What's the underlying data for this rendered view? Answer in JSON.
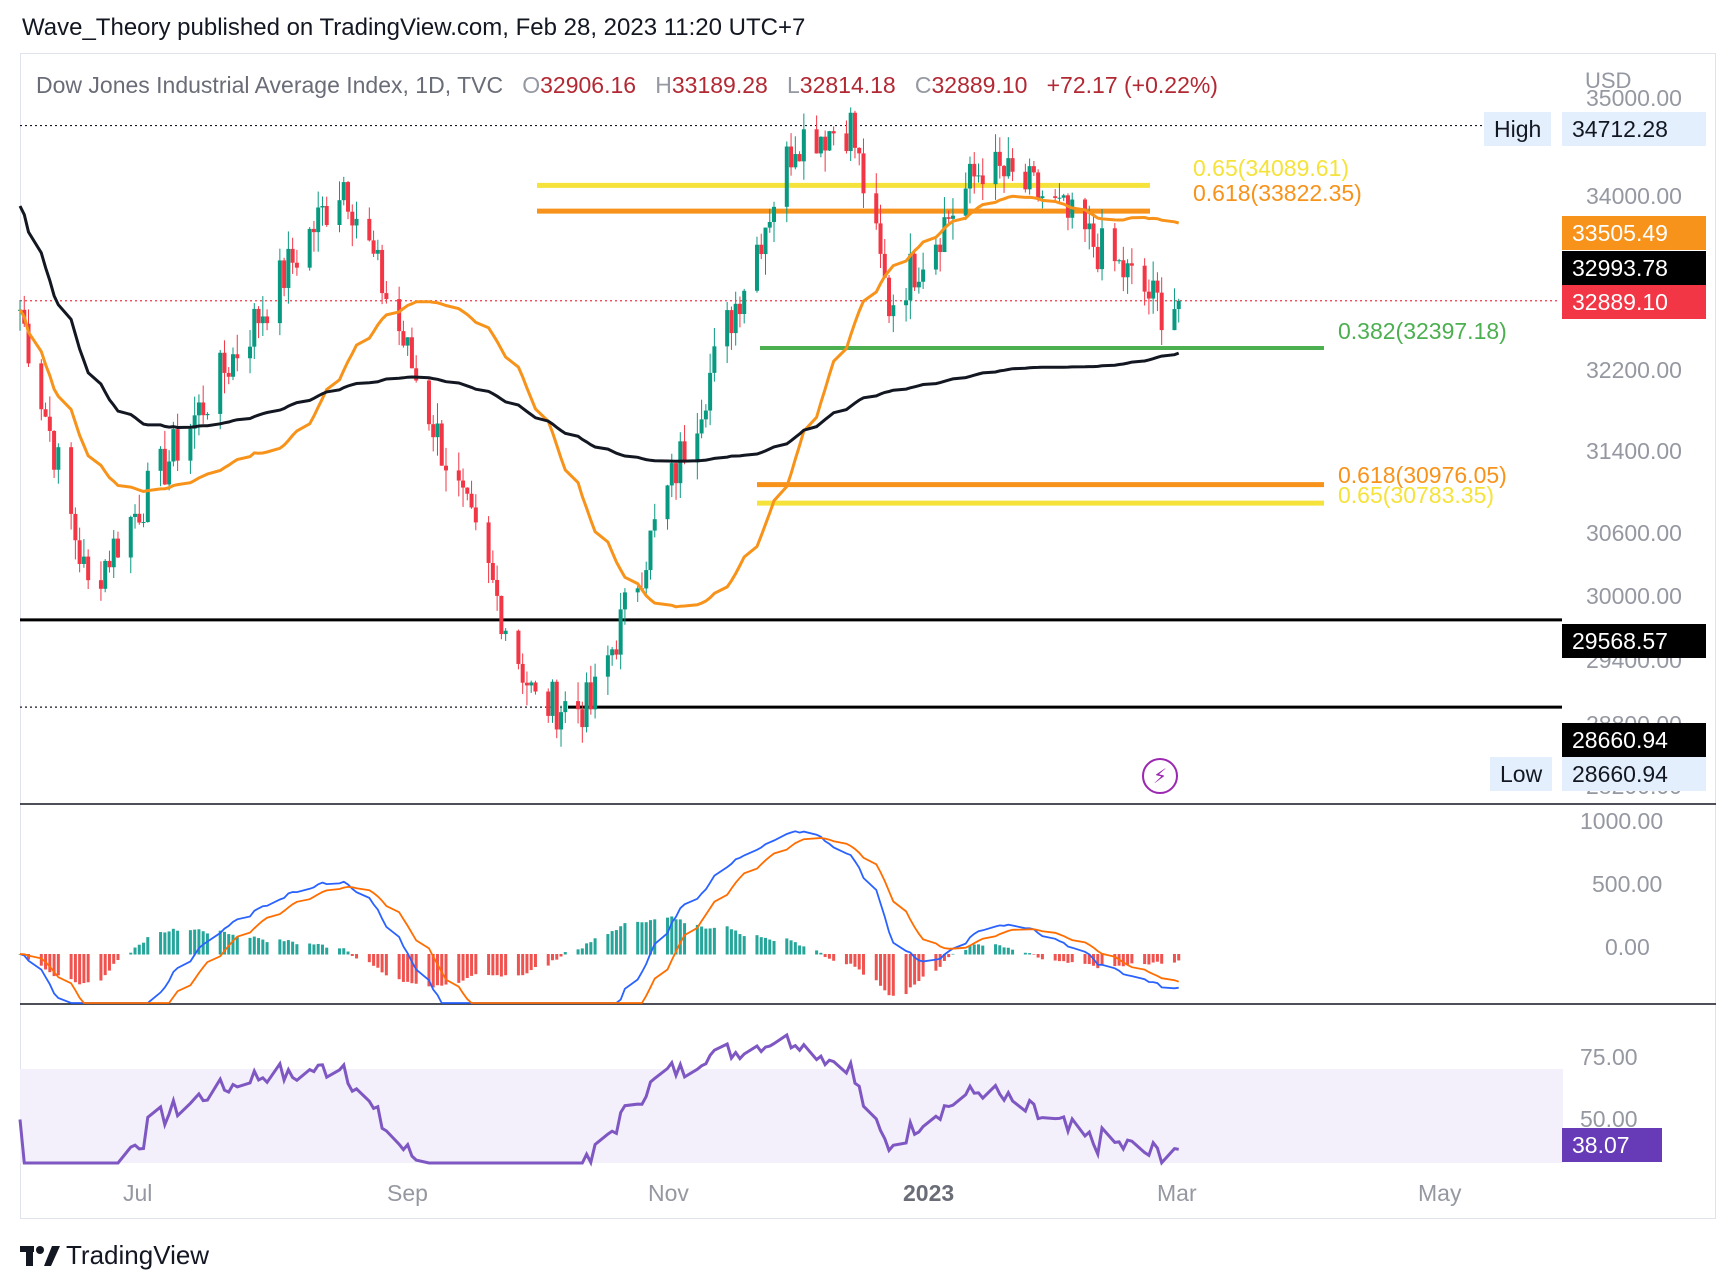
{
  "header": "Wave_Theory published on TradingView.com, Feb 28, 2023 11:20 UTC+7",
  "footer": {
    "brand": "TradingView",
    "logo_icon": "tradingview-logo-icon"
  },
  "legend": {
    "symbol": "Dow Jones Industrial Average Index, 1D, TVC",
    "o_label": "O",
    "o_value": "32906.16",
    "h_label": "H",
    "h_value": "33189.28",
    "l_label": "L",
    "l_value": "32814.18",
    "c_label": "C",
    "c_value": "32889.10",
    "change": "+72.17 (+0.22%)"
  },
  "currency": "USD",
  "price_pills": {
    "high_label": "High",
    "high_value": "34712.28",
    "ma50": "33505.49",
    "ma200": "32993.78",
    "last": "32889.10",
    "support1": "29568.57",
    "support2": "28660.94",
    "low_label": "Low",
    "low_value": "28660.94",
    "rsi_last": "38.07"
  },
  "y_ticks": [
    "35000.00",
    "34000.00",
    "32200.00",
    "31400.00",
    "30600.00",
    "30000.00",
    "29400.00",
    "28800.00",
    "28200.00"
  ],
  "macd_ticks": [
    "1000.00",
    "500.00",
    "0.00"
  ],
  "rsi_ticks": [
    "75.00",
    "50.00"
  ],
  "x_ticks": [
    {
      "label": "Jul",
      "bold": false
    },
    {
      "label": "Sep",
      "bold": false
    },
    {
      "label": "Nov",
      "bold": false
    },
    {
      "label": "2023",
      "bold": true
    },
    {
      "label": "Mar",
      "bold": false
    },
    {
      "label": "May",
      "bold": false
    }
  ],
  "fib_labels": {
    "upper_065": "0.65(34089.61)",
    "upper_0618": "0.618(33822.35)",
    "mid_0382": "0.382(32397.18)",
    "lower_0618": "0.618(30976.05)",
    "lower_065": "0.65(30783.35)"
  },
  "colors": {
    "bull": "#089981",
    "bear": "#f23645",
    "ma50": "#f7931a",
    "ma200": "#131722",
    "fib_yellow": "#f5e33b",
    "fib_orange": "#f7931a",
    "fib_green": "#4caf50",
    "macd": "#2962ff",
    "signal": "#ff6d00",
    "rsi": "#7e57c2"
  },
  "chart_data": {
    "type": "candlestick",
    "title": "Dow Jones Industrial Average Index, 1D, TVC",
    "date_range": [
      "2022-06-01",
      "2023-02-28"
    ],
    "ohlc_last": {
      "open": 32906.16,
      "high": 33189.28,
      "low": 32814.18,
      "close": 32889.1
    },
    "key_points": [
      {
        "date": "2022-06-01",
        "close": 32800
      },
      {
        "date": "2022-06-17",
        "close": 29900
      },
      {
        "date": "2022-08-16",
        "close": 34150
      },
      {
        "date": "2022-09-30",
        "close": 28700
      },
      {
        "date": "2022-10-13",
        "close": 28660.94
      },
      {
        "date": "2022-11-30",
        "close": 34590
      },
      {
        "date": "2022-12-13",
        "close": 34712.28
      },
      {
        "date": "2022-12-22",
        "close": 32850
      },
      {
        "date": "2023-01-13",
        "close": 34300
      },
      {
        "date": "2023-01-27",
        "close": 33978
      },
      {
        "date": "2023-02-24",
        "close": 32817
      },
      {
        "date": "2023-02-28",
        "close": 32889.1
      }
    ],
    "moving_averages": [
      {
        "name": "MA50",
        "last": 33505.49
      },
      {
        "name": "MA200",
        "last": 32993.78
      }
    ],
    "horizontal_levels": [
      34712.28,
      29568.57,
      28660.94
    ],
    "fibonacci": [
      {
        "level": 0.65,
        "value": 34089.61
      },
      {
        "level": 0.618,
        "value": 33822.35
      },
      {
        "level": 0.382,
        "value": 32397.18
      },
      {
        "level": 0.618,
        "value": 30976.05
      },
      {
        "level": 0.65,
        "value": 30783.35
      }
    ],
    "macd_range": [
      -500,
      1000
    ],
    "rsi_last": 38.07,
    "rsi_band": [
      30,
      70
    ]
  }
}
